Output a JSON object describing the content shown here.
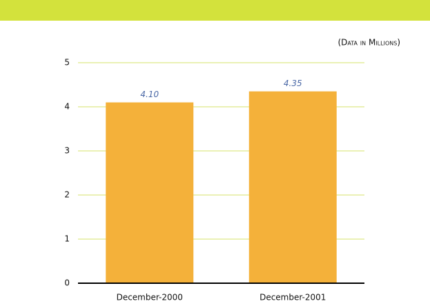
{
  "chart_data": {
    "type": "bar",
    "subtitle": "(Data in Millions)",
    "categories": [
      "December-2000",
      "December-2001"
    ],
    "values": [
      4.1,
      4.35
    ],
    "value_labels": [
      "4.10",
      "4.35"
    ],
    "color": "#f4b13a",
    "ylim": [
      0,
      5
    ],
    "yticks": [
      0,
      1,
      2,
      3,
      4,
      5
    ],
    "grid": true
  }
}
